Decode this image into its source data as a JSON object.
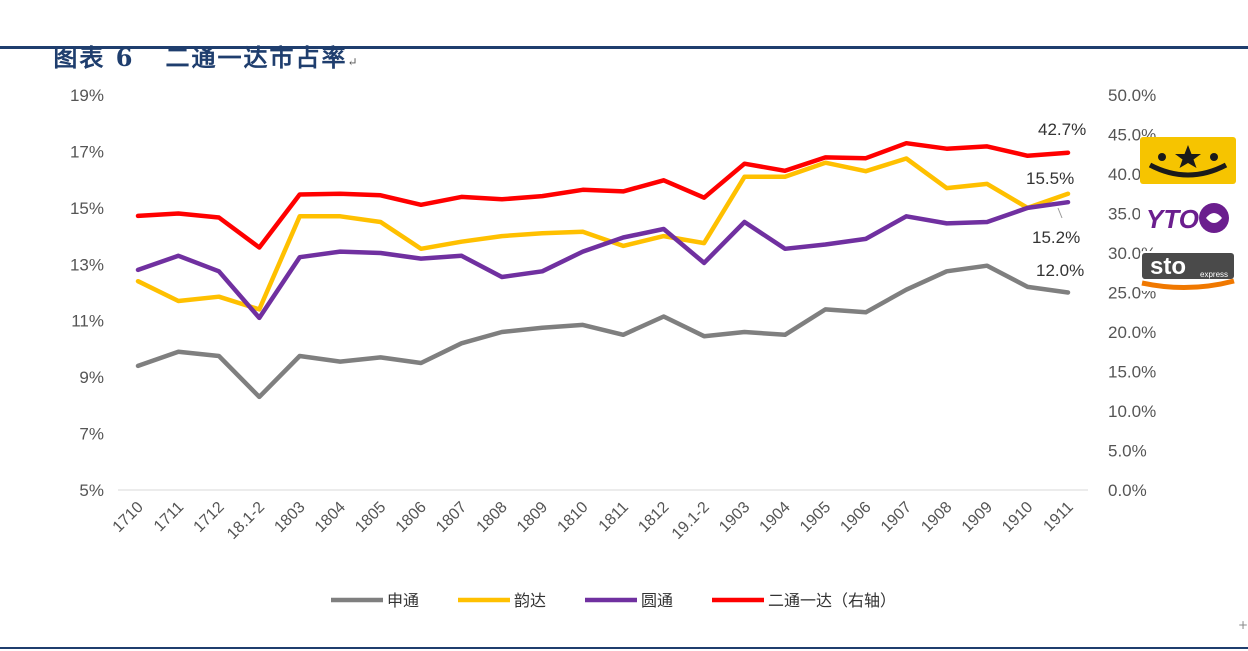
{
  "header": {
    "title": "图表 6   二通一达市占率",
    "return_mark": "↵"
  },
  "chart_data": {
    "type": "line",
    "title": "二通一达市占率",
    "categories": [
      "1710",
      "1711",
      "1712",
      "18.1-2",
      "1803",
      "1804",
      "1805",
      "1806",
      "1807",
      "1808",
      "1809",
      "1810",
      "1811",
      "1812",
      "19.1-2",
      "1903",
      "1904",
      "1905",
      "1906",
      "1907",
      "1908",
      "1909",
      "1910",
      "1911"
    ],
    "left_axis": {
      "ylim": [
        5,
        19
      ],
      "ticks": [
        "5%",
        "7%",
        "9%",
        "11%",
        "13%",
        "15%",
        "17%",
        "19%"
      ]
    },
    "right_axis": {
      "ylim": [
        0,
        50
      ],
      "ticks": [
        "0.0%",
        "5.0%",
        "10.0%",
        "15.0%",
        "20.0%",
        "25.0%",
        "30.0%",
        "35.0%",
        "40.0%",
        "45.0%",
        "50.0%"
      ]
    },
    "series": [
      {
        "name": "申通",
        "axis": "left",
        "color": "#7F7F7F",
        "values": [
          9.4,
          9.9,
          9.75,
          8.3,
          9.75,
          9.55,
          9.7,
          9.5,
          10.2,
          10.6,
          10.75,
          10.85,
          10.5,
          11.15,
          10.45,
          10.6,
          10.5,
          11.4,
          11.3,
          12.1,
          12.75,
          12.95,
          12.2,
          12.0
        ]
      },
      {
        "name": "韵达",
        "axis": "left",
        "color": "#FFC000",
        "values": [
          12.4,
          11.7,
          11.85,
          11.4,
          14.7,
          14.7,
          14.5,
          13.55,
          13.8,
          14.0,
          14.1,
          14.15,
          13.65,
          14.0,
          13.75,
          16.1,
          16.1,
          16.6,
          16.3,
          16.75,
          15.7,
          15.85,
          15.0,
          15.5
        ]
      },
      {
        "name": "圆通",
        "axis": "left",
        "color": "#7030A0",
        "values": [
          12.8,
          13.3,
          12.75,
          11.1,
          13.25,
          13.45,
          13.4,
          13.2,
          13.3,
          12.55,
          12.75,
          13.45,
          13.95,
          14.25,
          13.05,
          14.5,
          13.55,
          13.7,
          13.9,
          14.7,
          14.45,
          14.5,
          15.0,
          15.2
        ]
      },
      {
        "name": "二通一达（右轴）",
        "axis": "right",
        "color": "#FF0000",
        "values": [
          34.7,
          35.0,
          34.5,
          30.7,
          37.4,
          37.5,
          37.3,
          36.1,
          37.1,
          36.8,
          37.2,
          38.0,
          37.8,
          39.2,
          37.0,
          41.3,
          40.4,
          42.1,
          42.0,
          43.9,
          43.2,
          43.5,
          42.3,
          42.7
        ]
      }
    ],
    "data_labels": [
      "42.7%",
      "15.5%",
      "15.2%",
      "12.0%"
    ],
    "legend": [
      "申通",
      "韵达",
      "圆通",
      "二通一达（右轴）"
    ],
    "legend_position": "bottom",
    "grid": false
  },
  "logos": {
    "yunda": "yunda-logo",
    "yto": "YTO",
    "sto": "sto",
    "sto_sub": "express"
  },
  "footnote_mark": "+"
}
